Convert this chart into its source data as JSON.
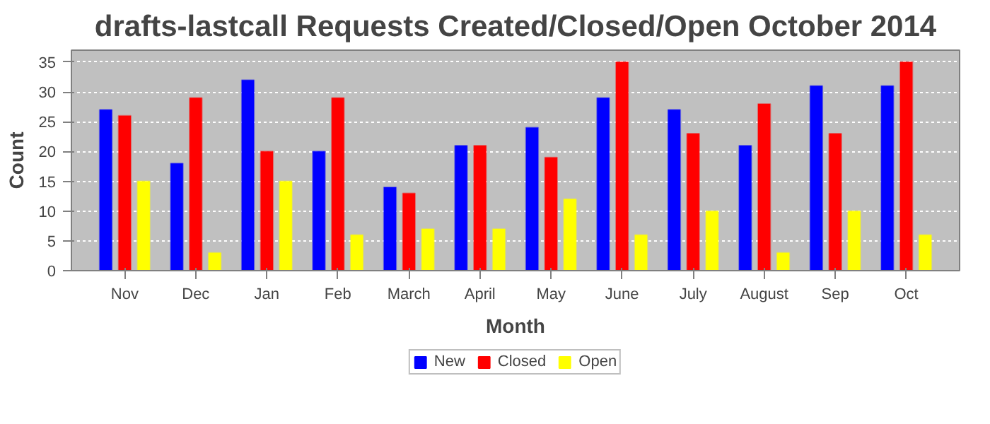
{
  "chart_data": {
    "type": "bar",
    "title": "drafts-lastcall Requests Created/Closed/Open October 2014",
    "xlabel": "Month",
    "ylabel": "Count",
    "categories": [
      "Nov",
      "Dec",
      "Jan",
      "Feb",
      "March",
      "April",
      "May",
      "June",
      "July",
      "August",
      "Sep",
      "Oct"
    ],
    "series": [
      {
        "name": "New",
        "color": "#0000ff",
        "values": [
          27,
          18,
          32,
          20,
          14,
          21,
          24,
          29,
          27,
          21,
          31,
          31
        ]
      },
      {
        "name": "Closed",
        "color": "#ff0000",
        "values": [
          26,
          29,
          20,
          29,
          13,
          21,
          19,
          35,
          23,
          28,
          23,
          35
        ]
      },
      {
        "name": "Open",
        "color": "#ffff00",
        "values": [
          15,
          3,
          15,
          6,
          7,
          7,
          12,
          6,
          10,
          3,
          10,
          6
        ]
      }
    ],
    "ylim": [
      0,
      37
    ],
    "yticks": [
      0,
      5,
      10,
      15,
      20,
      25,
      30,
      35
    ],
    "grid": "y",
    "legend": "bottom"
  }
}
